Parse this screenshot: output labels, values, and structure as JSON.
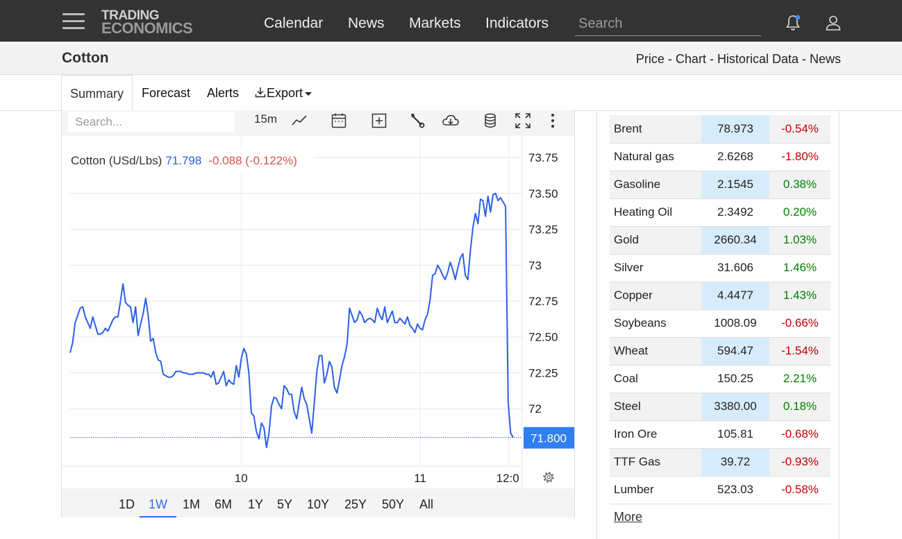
{
  "brand": {
    "line1": "TRADING",
    "line2": "ECONOMICS"
  },
  "nav": [
    "Calendar",
    "News",
    "Markets",
    "Indicators"
  ],
  "search": {
    "placeholder": "Search"
  },
  "icons": {
    "menu": "hamburger-icon",
    "notifications": "bell-icon",
    "account": "user-icon"
  },
  "page": {
    "title": "Cotton",
    "breadcrumbs": [
      "Price",
      "Chart",
      "Historical Data",
      "News"
    ],
    "separator": " - "
  },
  "tabs": [
    "Summary",
    "Forecast",
    "Alerts",
    "Export"
  ],
  "chart_toolbar": {
    "search_placeholder": "Search...",
    "interval": "15m",
    "icons": [
      "line-chart-icon",
      "calendar-icon",
      "compare-plus-icon",
      "wrench-icon",
      "download-cloud-icon",
      "database-icon",
      "fullscreen-icon",
      "more-vertical-icon"
    ]
  },
  "chart_header": {
    "name": "Cotton (USd/Lbs)",
    "last": "71.798",
    "change": "-0.088 (-0.122%)"
  },
  "ranges": [
    "1D",
    "1W",
    "1M",
    "6M",
    "1Y",
    "5Y",
    "10Y",
    "25Y",
    "50Y",
    "All"
  ],
  "active_range": "1W",
  "colors": {
    "line": "#2b5ee8",
    "positive": "#008000",
    "negative": "#c00000",
    "highlight": "#d7ecfa",
    "topbar": "#333333"
  },
  "chart_data": {
    "type": "line",
    "title": "Cotton (USd/Lbs)",
    "xlabel": "",
    "ylabel": "",
    "x_ticks": [
      "10",
      "11",
      "12:0"
    ],
    "y_ticks": [
      "73.75",
      "73.50",
      "73.25",
      "73",
      "72.75",
      "72.50",
      "72.25",
      "72"
    ],
    "ylim": [
      71.6,
      73.9
    ],
    "last_price_label": "71.800",
    "grid": true,
    "series": [
      {
        "values": [
          72.39,
          72.46,
          72.6,
          72.65,
          72.7,
          72.71,
          72.64,
          72.6,
          72.56,
          72.64,
          72.58,
          72.52,
          72.52,
          72.53,
          72.56,
          72.54,
          72.58,
          72.62,
          72.64,
          72.64,
          72.75,
          72.87,
          72.74,
          72.72,
          72.71,
          72.6,
          72.71,
          72.51,
          72.59,
          72.66,
          72.77,
          72.65,
          72.47,
          72.49,
          72.39,
          72.34,
          72.33,
          72.24,
          72.23,
          72.22,
          72.22,
          72.23,
          72.26,
          72.26,
          72.26,
          72.25,
          72.25,
          72.24,
          72.24,
          72.24,
          72.25,
          72.25,
          72.25,
          72.25,
          72.24,
          72.24,
          72.22,
          72.26,
          72.17,
          72.18,
          72.22,
          72.26,
          72.16,
          72.2,
          72.18,
          72.17,
          72.3,
          72.22,
          72.35,
          72.42,
          72.38,
          72.25,
          71.97,
          71.95,
          71.84,
          71.79,
          71.9,
          71.87,
          71.73,
          71.83,
          72.02,
          72.08,
          72.07,
          72.03,
          72.0,
          72.16,
          72.14,
          72.1,
          72.1,
          71.98,
          71.93,
          72.04,
          72.15,
          72.07,
          72.03,
          71.93,
          71.83,
          72.04,
          72.26,
          72.37,
          72.37,
          72.18,
          72.24,
          72.33,
          72.29,
          72.15,
          72.11,
          72.2,
          72.3,
          72.36,
          72.45,
          72.7,
          72.65,
          72.6,
          72.62,
          72.68,
          72.65,
          72.6,
          72.62,
          72.63,
          72.62,
          72.6,
          72.7,
          72.65,
          72.62,
          72.71,
          72.6,
          72.64,
          72.68,
          72.6,
          72.6,
          72.63,
          72.61,
          72.59,
          72.64,
          72.58,
          72.56,
          72.53,
          72.59,
          72.56,
          72.55,
          72.62,
          72.66,
          72.76,
          72.93,
          72.94,
          73.0,
          72.97,
          72.93,
          72.9,
          72.95,
          73.02,
          72.97,
          72.9,
          72.98,
          73.05,
          73.08,
          72.93,
          72.9,
          73.1,
          73.26,
          73.36,
          73.29,
          73.46,
          73.45,
          73.34,
          73.48,
          73.37,
          73.49,
          73.5,
          73.45,
          73.47,
          73.44,
          73.41,
          72.05,
          71.83,
          71.8
        ]
      }
    ]
  },
  "market_table": {
    "rows": [
      {
        "name": "Brent",
        "price": "78.973",
        "change": "-0.54%",
        "dir": "neg"
      },
      {
        "name": "Natural gas",
        "price": "2.6268",
        "change": "-1.80%",
        "dir": "neg"
      },
      {
        "name": "Gasoline",
        "price": "2.1545",
        "change": "0.38%",
        "dir": "pos"
      },
      {
        "name": "Heating Oil",
        "price": "2.3492",
        "change": "0.20%",
        "dir": "pos"
      },
      {
        "name": "Gold",
        "price": "2660.34",
        "change": "1.03%",
        "dir": "pos"
      },
      {
        "name": "Silver",
        "price": "31.606",
        "change": "1.46%",
        "dir": "pos"
      },
      {
        "name": "Copper",
        "price": "4.4477",
        "change": "1.43%",
        "dir": "pos"
      },
      {
        "name": "Soybeans",
        "price": "1008.09",
        "change": "-0.66%",
        "dir": "neg"
      },
      {
        "name": "Wheat",
        "price": "594.47",
        "change": "-1.54%",
        "dir": "neg"
      },
      {
        "name": "Coal",
        "price": "150.25",
        "change": "2.21%",
        "dir": "pos"
      },
      {
        "name": "Steel",
        "price": "3380.00",
        "change": "0.18%",
        "dir": "pos"
      },
      {
        "name": "Iron Ore",
        "price": "105.81",
        "change": "-0.68%",
        "dir": "neg"
      },
      {
        "name": "TTF Gas",
        "price": "39.72",
        "change": "-0.93%",
        "dir": "neg"
      },
      {
        "name": "Lumber",
        "price": "523.03",
        "change": "-0.58%",
        "dir": "neg"
      }
    ],
    "more": "More"
  }
}
